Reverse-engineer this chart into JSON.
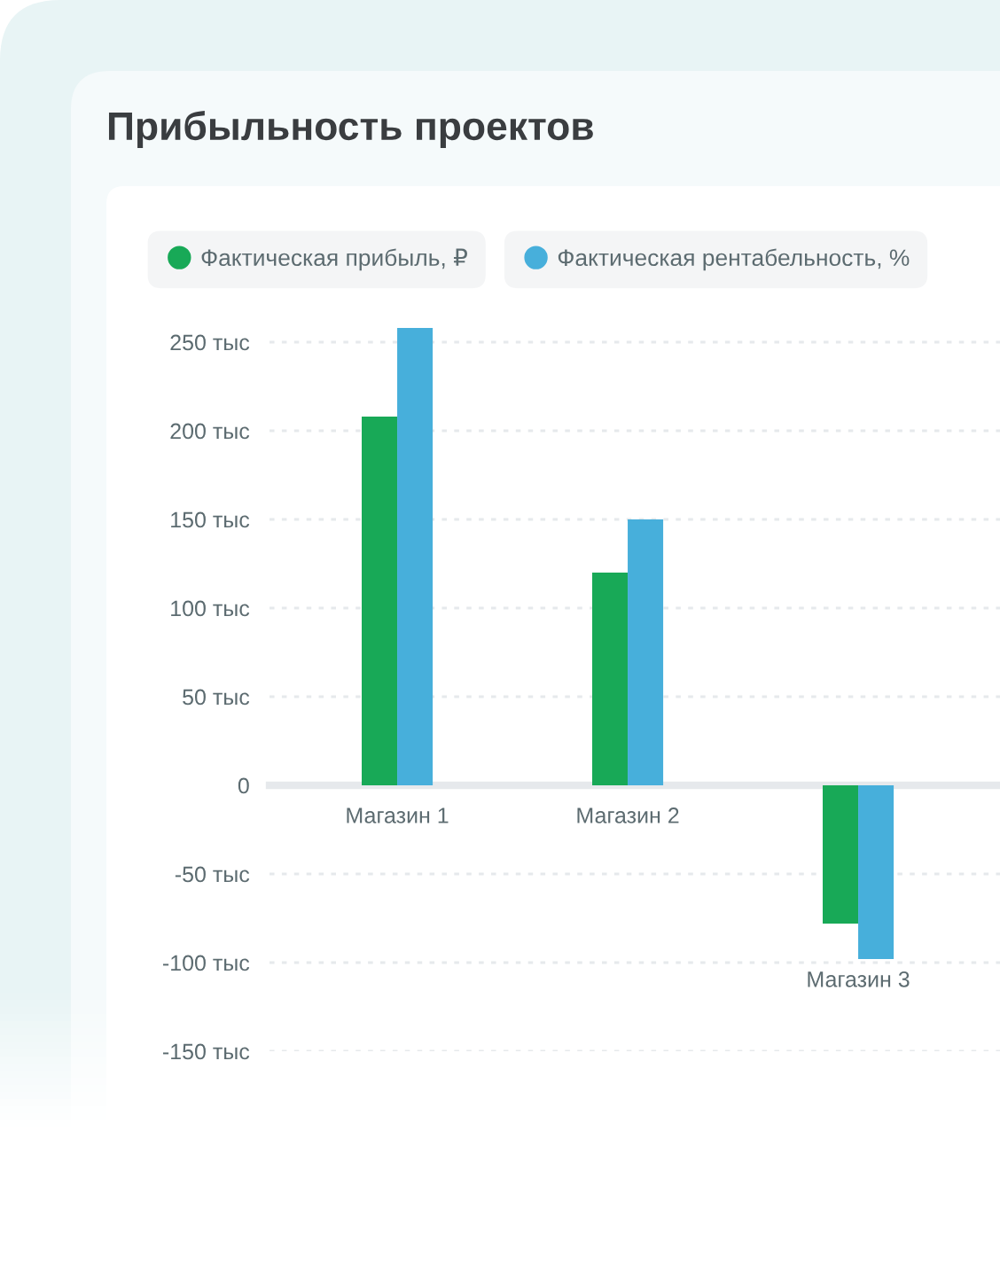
{
  "chart_data": {
    "type": "bar",
    "title": "Прибыльность проектов",
    "categories": [
      "Магазин 1",
      "Магазин 2",
      "Магазин 3"
    ],
    "series": [
      {
        "name": "Фактическая прибыль, ₽",
        "color": "#18a957",
        "values": [
          208,
          120,
          -78
        ]
      },
      {
        "name": "Фактическая рентабельность, %",
        "color": "#47afdb",
        "values": [
          258,
          150,
          -98
        ]
      }
    ],
    "ylim": [
      -150,
      260
    ],
    "yticks": [
      {
        "value": -150,
        "label": "-150 тыс"
      },
      {
        "value": -100,
        "label": "-100 тыс"
      },
      {
        "value": -50,
        "label": "-50 тыс"
      },
      0,
      {
        "value": 50,
        "label": "50 тыс"
      },
      {
        "value": 100,
        "label": "100 тыс"
      },
      {
        "value": 150,
        "label": "150 тыс"
      },
      {
        "value": 200,
        "label": "200 тыс"
      },
      {
        "value": 250,
        "label": "250 тыс"
      }
    ],
    "grid": "y",
    "legend": "top left"
  }
}
